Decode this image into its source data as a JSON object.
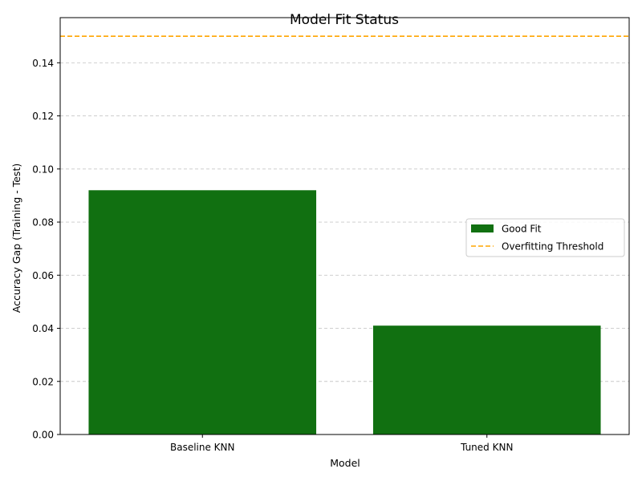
{
  "chart_data": {
    "type": "bar",
    "title": "Model Fit Status",
    "xlabel": "Model",
    "ylabel": "Accuracy Gap (Training - Test)",
    "categories": [
      "Baseline KNN",
      "Tuned KNN"
    ],
    "values": [
      0.092,
      0.041
    ],
    "ylim": [
      0,
      0.157
    ],
    "yticks": [
      "0.00",
      "0.02",
      "0.04",
      "0.06",
      "0.08",
      "0.10",
      "0.12",
      "0.14"
    ],
    "grid": "y-dashed",
    "threshold": {
      "value": 0.15,
      "label": "Overfitting Threshold",
      "color": "#ffa500"
    },
    "legend": {
      "placement": "center-right",
      "entries": [
        {
          "label": "Good Fit",
          "color": "#117011",
          "kind": "patch"
        },
        {
          "label": "Overfitting Threshold",
          "color": "#ffa500",
          "kind": "dashed-line"
        }
      ]
    },
    "bar_color": "#117011"
  }
}
